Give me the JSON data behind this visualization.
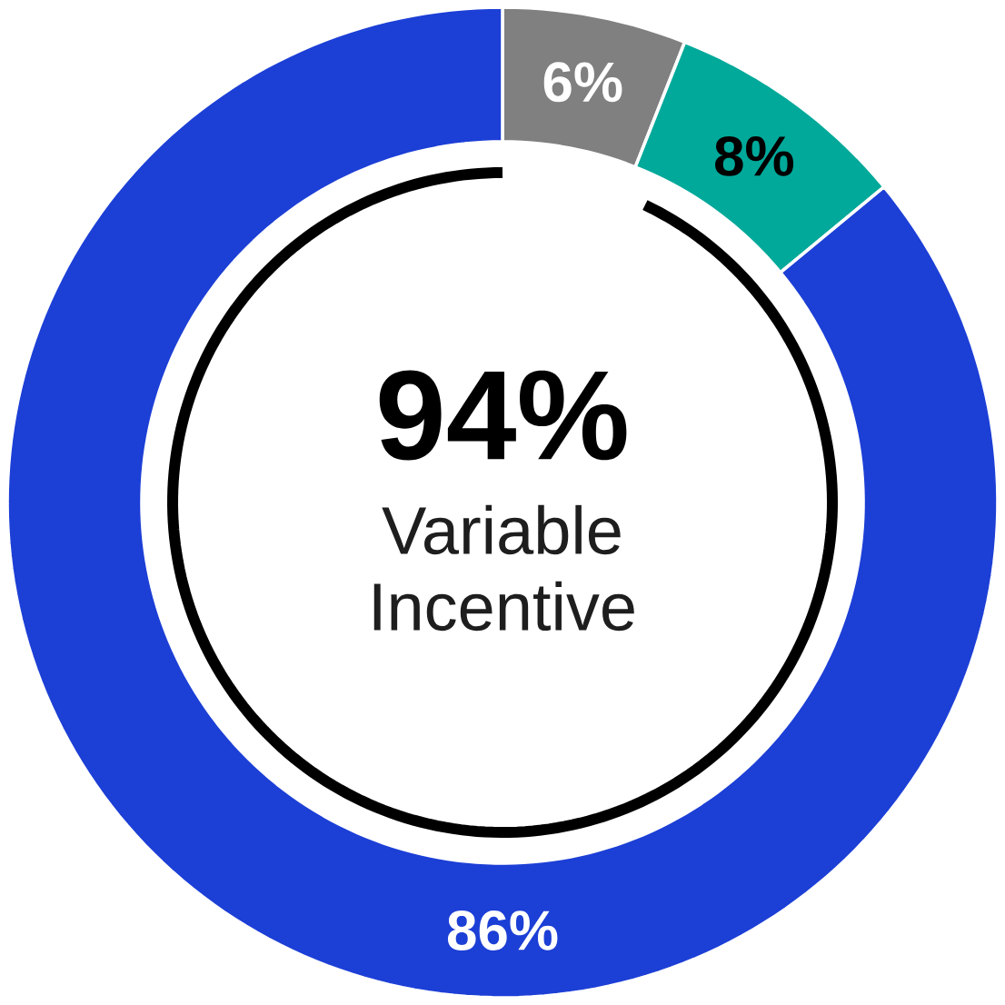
{
  "chart_data": {
    "type": "donut",
    "categories": [
      null,
      null,
      null
    ],
    "values": [
      6,
      8,
      86
    ],
    "colors": [
      "#808080",
      "#00a99a",
      "#1c3fd6"
    ],
    "value_labels": [
      "6%",
      "8%",
      "86%"
    ],
    "annotations": [
      "94%",
      "Variable Incentive"
    ]
  }
}
